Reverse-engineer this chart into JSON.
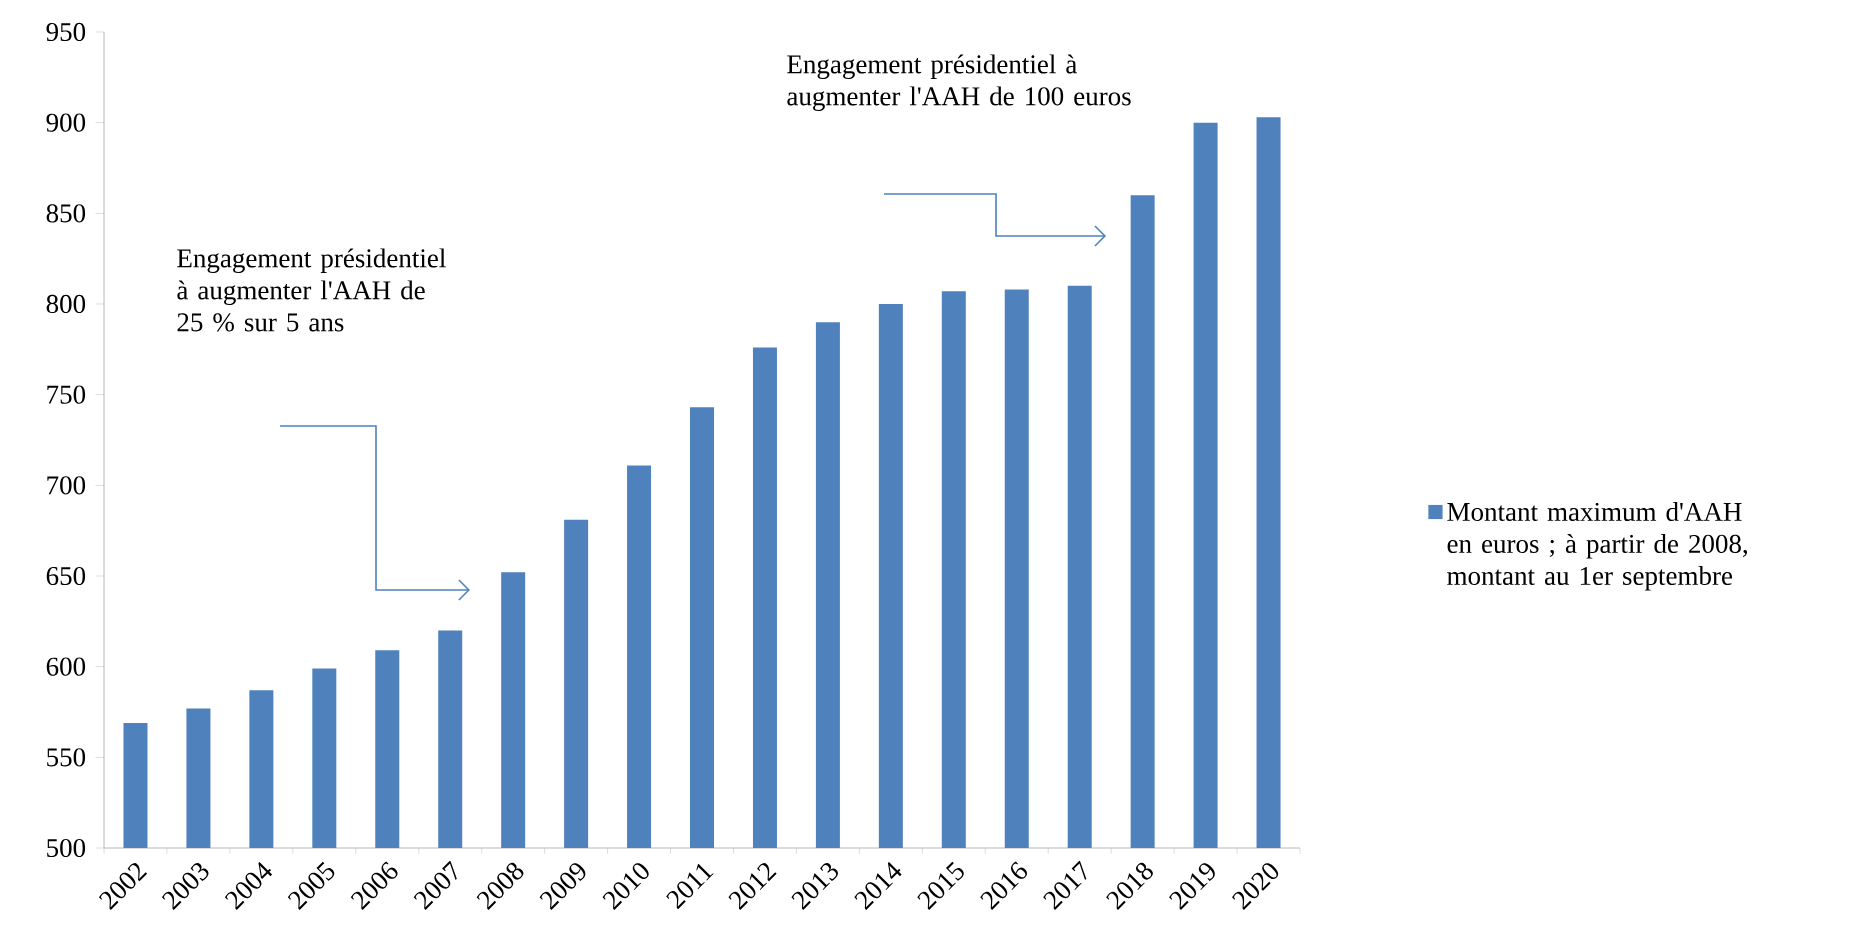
{
  "chart_data": {
    "type": "bar",
    "categories": [
      "2002",
      "2003",
      "2004",
      "2005",
      "2006",
      "2007",
      "2008",
      "2009",
      "2010",
      "2011",
      "2012",
      "2013",
      "2014",
      "2015",
      "2016",
      "2017",
      "2018",
      "2019",
      "2020"
    ],
    "series": [
      {
        "name": "Montant maximum d'AAH en euros ; à partir de 2008, montant au 1er septembre",
        "color": "#4f81bd",
        "values": [
          569,
          577,
          587,
          599,
          609,
          620,
          652,
          681,
          711,
          743,
          776,
          790,
          800,
          807,
          808,
          810,
          860,
          900,
          903
        ]
      }
    ],
    "ylim": [
      500,
      950
    ],
    "yticks": [
      500,
      550,
      600,
      650,
      700,
      750,
      800,
      850,
      900,
      950
    ],
    "grid": false,
    "legend": "right",
    "annotations": [
      "Engagement présidentiel à augmenter l'AAH de 25 % sur 5 ans",
      "Engagement présidentiel à augmenter l'AAH de 100 euros"
    ]
  }
}
